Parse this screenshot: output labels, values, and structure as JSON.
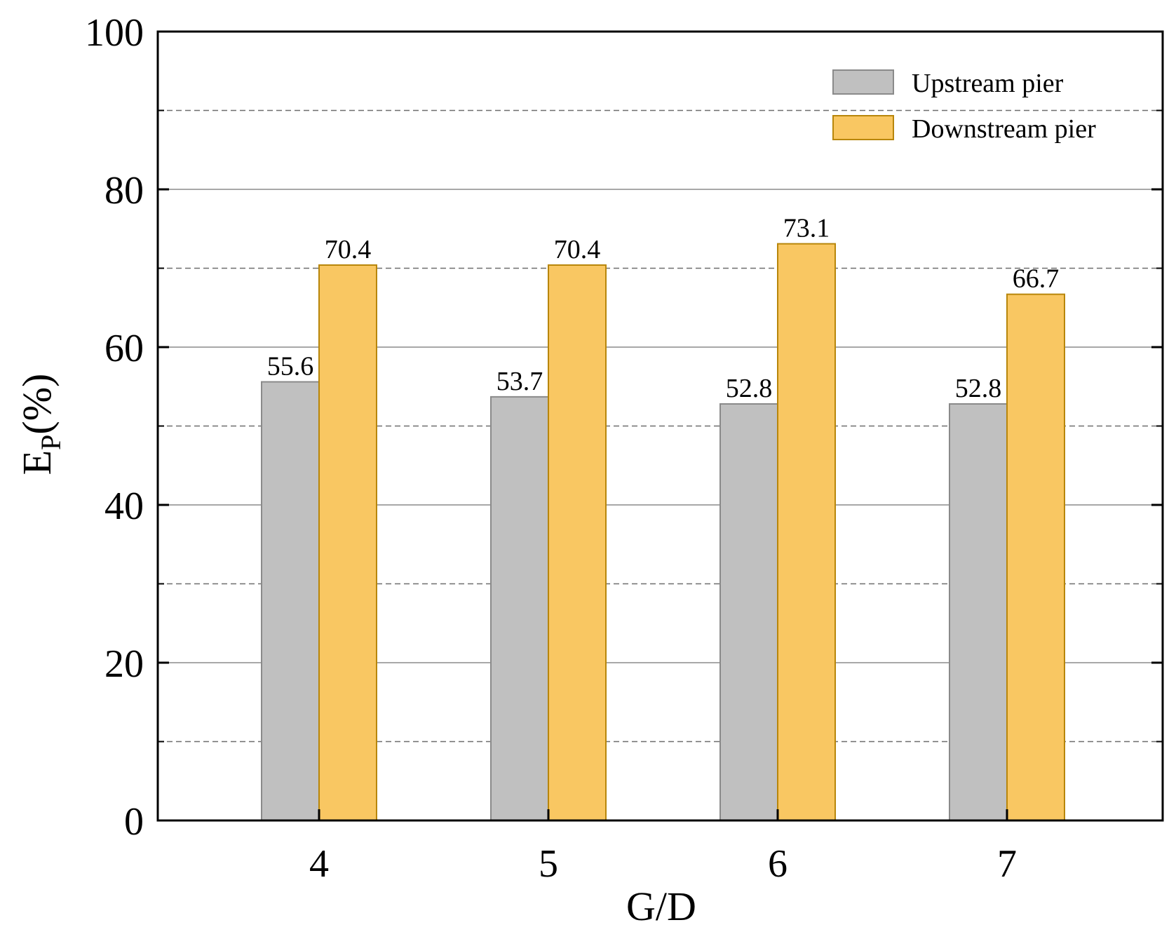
{
  "chart_data": {
    "type": "bar",
    "xlabel": "G/D",
    "ylabel_main": "E",
    "ylabel_sub": "P",
    "ylabel_unit": "(%)",
    "categories": [
      "4",
      "5",
      "6",
      "7"
    ],
    "series": [
      {
        "name": "Upstream pier",
        "color": "#C0C0C0",
        "edge": "#8A8A8A",
        "values": [
          55.6,
          53.7,
          52.8,
          52.8
        ],
        "labels": [
          "55.6",
          "53.7",
          "52.8",
          "52.8"
        ]
      },
      {
        "name": "Downstream pier",
        "color": "#F9C762",
        "edge": "#B8860B",
        "values": [
          70.4,
          70.4,
          73.1,
          66.7
        ],
        "labels": [
          "70.4",
          "70.4",
          "73.1",
          "66.7"
        ]
      }
    ],
    "ylim": [
      0,
      100
    ],
    "yticks": [
      0,
      20,
      40,
      60,
      80,
      100
    ],
    "ytick_labels": [
      "0",
      "20",
      "40",
      "60",
      "80",
      "100"
    ],
    "minor_grid": [
      10,
      30,
      50,
      70,
      90
    ],
    "grid": true,
    "legend_position": "top-right"
  }
}
